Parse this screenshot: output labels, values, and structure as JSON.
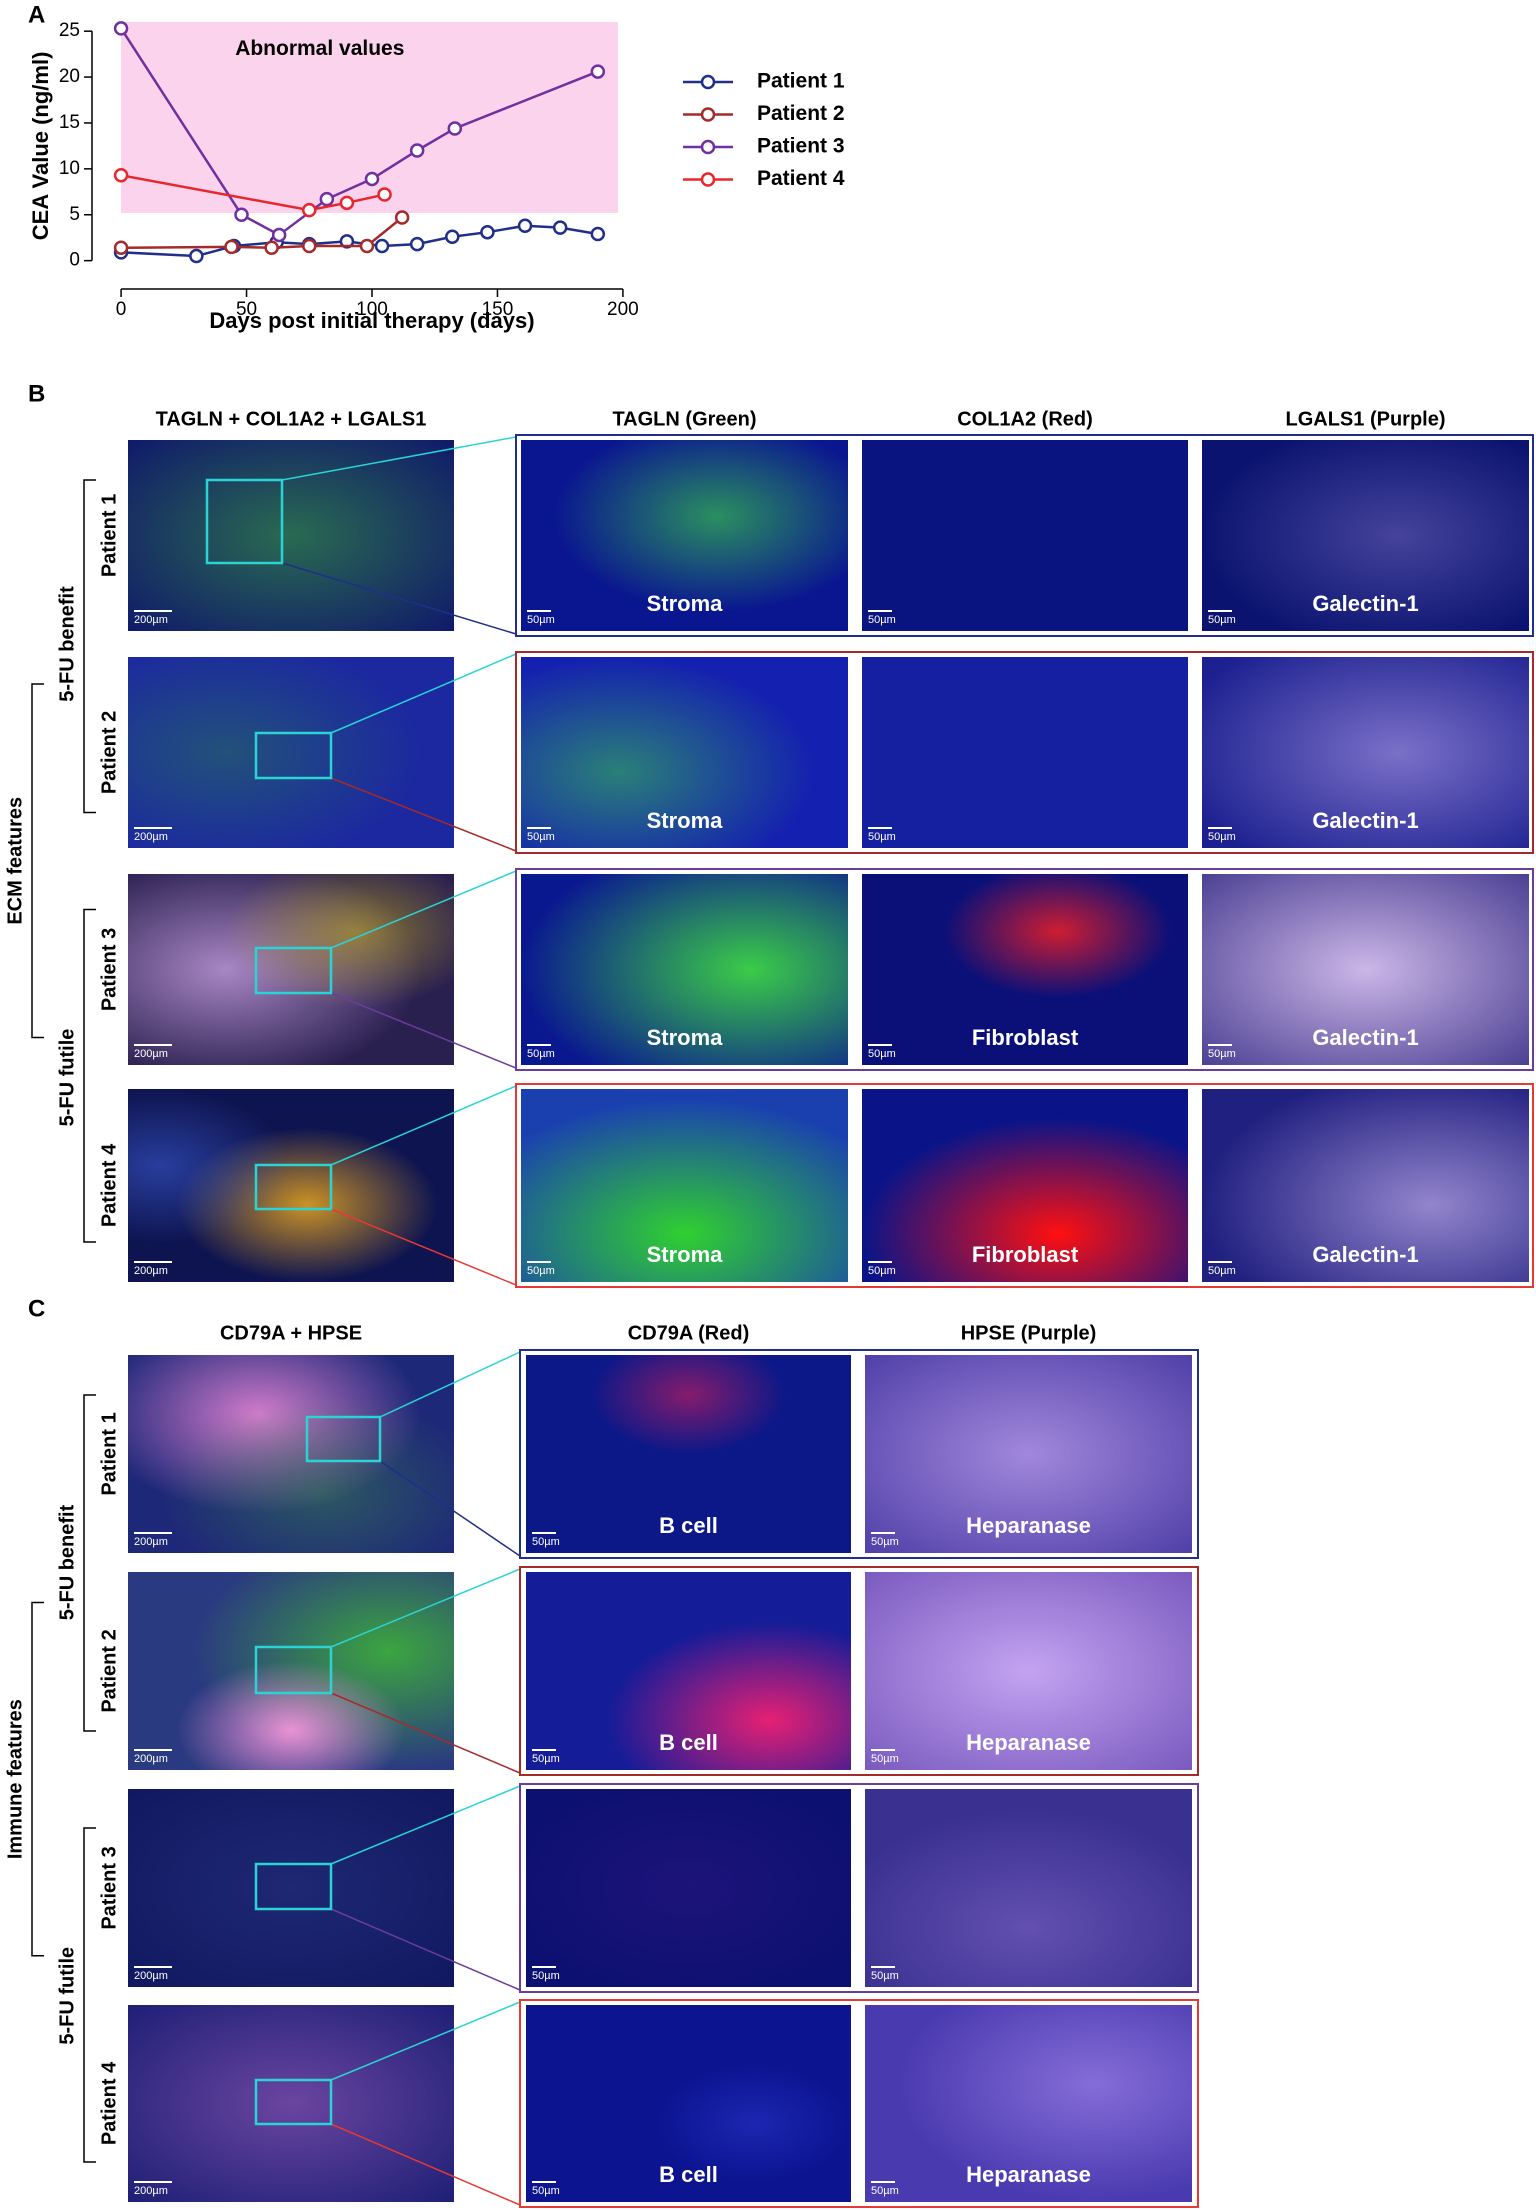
{
  "chart_data": {
    "type": "line",
    "panel_label": "A",
    "ylabel": "CEA Value (ng/ml)",
    "xlabel": "Days post initial therapy (days)",
    "xlim": [
      -10,
      210
    ],
    "ylim": [
      -2,
      26
    ],
    "xticks": [
      0,
      50,
      100,
      150,
      200
    ],
    "yticks": [
      0,
      5,
      10,
      15,
      20,
      25
    ],
    "shade": {
      "label": "Abnormal values",
      "color": "#fbd3ec",
      "x": [
        0,
        198
      ],
      "y": [
        5.2,
        26
      ]
    },
    "legend": "right",
    "series": [
      {
        "name": "Patient 1",
        "color": "#1f2f8a",
        "x": [
          0,
          30,
          45,
          62,
          75,
          90,
          104,
          118,
          132,
          146,
          161,
          175,
          190
        ],
        "values": [
          0.9,
          0.5,
          1.6,
          2.0,
          1.8,
          2.1,
          1.6,
          1.8,
          2.6,
          3.1,
          3.8,
          3.6,
          2.9
        ]
      },
      {
        "name": "Patient 2",
        "color": "#a52a2a",
        "x": [
          0,
          44,
          60,
          75,
          98,
          112
        ],
        "values": [
          1.4,
          1.5,
          1.4,
          1.6,
          1.6,
          4.7
        ]
      },
      {
        "name": "Patient 3",
        "color": "#7030a0",
        "x": [
          0,
          48,
          63,
          82,
          100,
          118,
          133,
          190
        ],
        "values": [
          25.3,
          5.0,
          2.8,
          6.7,
          8.9,
          12.0,
          14.4,
          20.6
        ]
      },
      {
        "name": "Patient 4",
        "color": "#e8262b",
        "x": [
          0,
          75,
          90,
          105
        ],
        "values": [
          9.3,
          5.5,
          6.3,
          7.2
        ]
      }
    ]
  },
  "panels": [
    {
      "label": "B",
      "overview_title": "TAGLN + COL1A2 + LGALS1",
      "channel_titles": [
        "TAGLN (Green)",
        "COL1A2 (Red)",
        "LGALS1 (Purple)"
      ],
      "feature_label": "ECM features",
      "group_labels": [
        "5-FU benefit",
        "5-FU futile"
      ],
      "rows": [
        {
          "patient": "Patient 1",
          "overview_scale": "200µm",
          "details": [
            {
              "scale": "50µm",
              "annotation": "Stroma"
            },
            {
              "scale": "50µm"
            },
            {
              "scale": "50µm",
              "annotation": "Galectin-1"
            }
          ]
        },
        {
          "patient": "Patient 2",
          "overview_scale": "200µm",
          "details": [
            {
              "scale": "50µm",
              "annotation": "Stroma"
            },
            {
              "scale": "50µm"
            },
            {
              "scale": "50µm",
              "annotation": "Galectin-1"
            }
          ]
        },
        {
          "patient": "Patient 3",
          "overview_scale": "200µm",
          "details": [
            {
              "scale": "50µm",
              "annotation": "Stroma"
            },
            {
              "scale": "50µm",
              "annotation": "Fibroblast"
            },
            {
              "scale": "50µm",
              "annotation": "Galectin-1"
            }
          ]
        },
        {
          "patient": "Patient 4",
          "overview_scale": "200µm",
          "details": [
            {
              "scale": "50µm",
              "annotation": "Stroma"
            },
            {
              "scale": "50µm",
              "annotation": "Fibroblast"
            },
            {
              "scale": "50µm",
              "annotation": "Galectin-1"
            }
          ]
        }
      ]
    },
    {
      "label": "C",
      "overview_title": "CD79A + HPSE",
      "channel_titles": [
        "CD79A (Red)",
        "HPSE (Purple)"
      ],
      "feature_label": "Immune features",
      "group_labels": [
        "5-FU benefit",
        "5-FU futile"
      ],
      "rows": [
        {
          "patient": "Patient 1",
          "overview_scale": "200µm",
          "details": [
            {
              "scale": "50µm",
              "annotation": "B cell"
            },
            {
              "scale": "50µm",
              "annotation": "Heparanase"
            }
          ]
        },
        {
          "patient": "Patient 2",
          "overview_scale": "200µm",
          "details": [
            {
              "scale": "50µm",
              "annotation": "B cell"
            },
            {
              "scale": "50µm",
              "annotation": "Heparanase"
            }
          ]
        },
        {
          "patient": "Patient 3",
          "overview_scale": "200µm",
          "details": [
            {
              "scale": "50µm"
            },
            {
              "scale": "50µm"
            }
          ]
        },
        {
          "patient": "Patient 4",
          "overview_scale": "200µm",
          "details": [
            {
              "scale": "50µm",
              "annotation": "B cell"
            },
            {
              "scale": "50µm",
              "annotation": "Heparanase"
            }
          ]
        }
      ]
    }
  ]
}
